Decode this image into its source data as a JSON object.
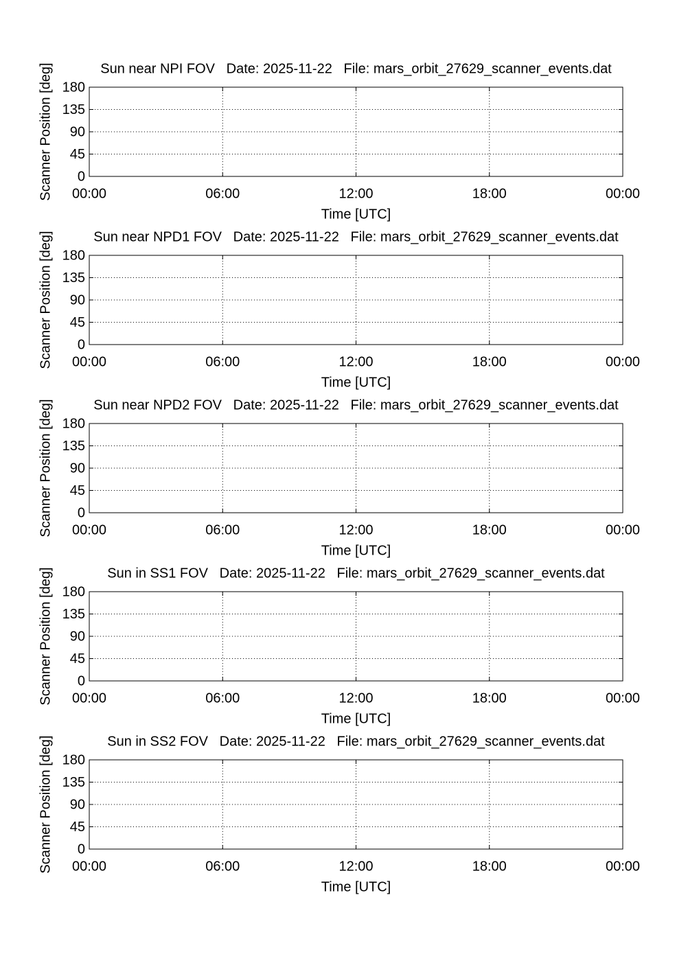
{
  "chart_data": [
    {
      "type": "line",
      "title": "Sun near NPI FOV   Date: 2025-11-22   File: mars_orbit_27629_scanner_events.dat",
      "xlabel": "Time [UTC]",
      "ylabel": "Scanner Position [deg]",
      "xlim": [
        0,
        24
      ],
      "xticks": [
        {
          "value": 0,
          "label": "00:00"
        },
        {
          "value": 6,
          "label": "06:00"
        },
        {
          "value": 12,
          "label": "12:00"
        },
        {
          "value": 18,
          "label": "18:00"
        },
        {
          "value": 24,
          "label": "00:00"
        }
      ],
      "ylim": [
        0,
        180
      ],
      "yticks": [
        0,
        45,
        90,
        135,
        180
      ],
      "grid": true
    },
    {
      "type": "line",
      "title": "Sun near NPD1 FOV   Date: 2025-11-22   File: mars_orbit_27629_scanner_events.dat",
      "xlabel": "Time [UTC]",
      "ylabel": "Scanner Position [deg]",
      "xlim": [
        0,
        24
      ],
      "xticks": [
        {
          "value": 0,
          "label": "00:00"
        },
        {
          "value": 6,
          "label": "06:00"
        },
        {
          "value": 12,
          "label": "12:00"
        },
        {
          "value": 18,
          "label": "18:00"
        },
        {
          "value": 24,
          "label": "00:00"
        }
      ],
      "ylim": [
        0,
        180
      ],
      "yticks": [
        0,
        45,
        90,
        135,
        180
      ],
      "grid": true
    },
    {
      "type": "line",
      "title": "Sun near NPD2 FOV   Date: 2025-11-22   File: mars_orbit_27629_scanner_events.dat",
      "xlabel": "Time [UTC]",
      "ylabel": "Scanner Position [deg]",
      "xlim": [
        0,
        24
      ],
      "xticks": [
        {
          "value": 0,
          "label": "00:00"
        },
        {
          "value": 6,
          "label": "06:00"
        },
        {
          "value": 12,
          "label": "12:00"
        },
        {
          "value": 18,
          "label": "18:00"
        },
        {
          "value": 24,
          "label": "00:00"
        }
      ],
      "ylim": [
        0,
        180
      ],
      "yticks": [
        0,
        45,
        90,
        135,
        180
      ],
      "grid": true
    },
    {
      "type": "line",
      "title": "Sun in SS1 FOV   Date: 2025-11-22   File: mars_orbit_27629_scanner_events.dat",
      "xlabel": "Time [UTC]",
      "ylabel": "Scanner Position [deg]",
      "xlim": [
        0,
        24
      ],
      "xticks": [
        {
          "value": 0,
          "label": "00:00"
        },
        {
          "value": 6,
          "label": "06:00"
        },
        {
          "value": 12,
          "label": "12:00"
        },
        {
          "value": 18,
          "label": "18:00"
        },
        {
          "value": 24,
          "label": "00:00"
        }
      ],
      "ylim": [
        0,
        180
      ],
      "yticks": [
        0,
        45,
        90,
        135,
        180
      ],
      "grid": true
    },
    {
      "type": "line",
      "title": "Sun in SS2 FOV   Date: 2025-11-22   File: mars_orbit_27629_scanner_events.dat",
      "xlabel": "Time [UTC]",
      "ylabel": "Scanner Position [deg]",
      "xlim": [
        0,
        24
      ],
      "xticks": [
        {
          "value": 0,
          "label": "00:00"
        },
        {
          "value": 6,
          "label": "06:00"
        },
        {
          "value": 12,
          "label": "12:00"
        },
        {
          "value": 18,
          "label": "18:00"
        },
        {
          "value": 24,
          "label": "00:00"
        }
      ],
      "ylim": [
        0,
        180
      ],
      "yticks": [
        0,
        45,
        90,
        135,
        180
      ],
      "grid": true
    }
  ]
}
